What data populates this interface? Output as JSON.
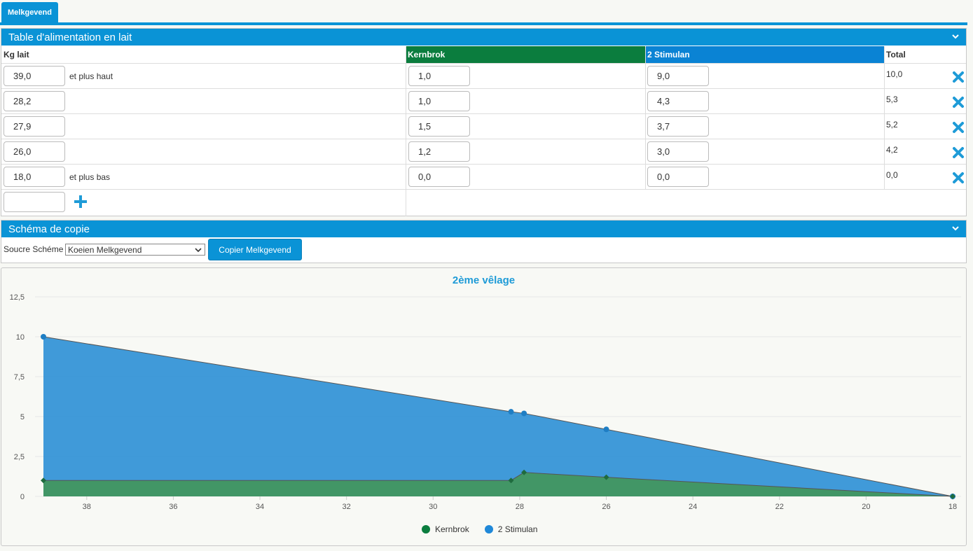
{
  "tabs": [
    {
      "label": "Melkgevend"
    }
  ],
  "feed_table": {
    "title": "Table d'alimentation en lait",
    "headers": {
      "kg": "Kg lait",
      "col1": "Kernbrok",
      "col2": "2 Stimulan",
      "total": "Total"
    },
    "colors": {
      "col1": "#0b7d3e",
      "col2": "#0a83d4"
    },
    "rows": [
      {
        "kg": "39,0",
        "note": "et plus haut",
        "col1": "1,0",
        "col2": "9,0",
        "total": "10,0"
      },
      {
        "kg": "28,2",
        "note": "",
        "col1": "1,0",
        "col2": "4,3",
        "total": "5,3"
      },
      {
        "kg": "27,9",
        "note": "",
        "col1": "1,5",
        "col2": "3,7",
        "total": "5,2"
      },
      {
        "kg": "26,0",
        "note": "",
        "col1": "1,2",
        "col2": "3,0",
        "total": "4,2"
      },
      {
        "kg": "18,0",
        "note": "et plus bas",
        "col1": "0,0",
        "col2": "0,0",
        "total": "0,0"
      }
    ],
    "new_row": {
      "kg": ""
    },
    "icons": {
      "delete": "x-icon",
      "add": "plus-icon",
      "collapse": "chevron-down-icon"
    }
  },
  "copy_schema": {
    "title": "Schéma de copie",
    "source_label": "Soucre Schéme",
    "source_selected": "Koeien Melkgevend",
    "copy_button": "Copier Melkgevend"
  },
  "chart_data": {
    "type": "area",
    "title": "2ème vêlage",
    "xlabel": "",
    "ylabel": "",
    "x_reversed": true,
    "xlim": [
      39,
      18
    ],
    "ylim": [
      0,
      12.5
    ],
    "xticks": [
      38,
      36,
      34,
      32,
      30,
      28,
      26,
      24,
      22,
      20,
      18
    ],
    "yticks": [
      "0",
      "2,5",
      "5",
      "7,5",
      "10",
      "12,5"
    ],
    "ytick_values": [
      0,
      2.5,
      5,
      7.5,
      10,
      12.5
    ],
    "stacked": true,
    "x": [
      39.0,
      28.2,
      27.9,
      26.0,
      18.0
    ],
    "series": [
      {
        "name": "Kernbrok",
        "color": "#2e8b57",
        "values": [
          1.0,
          1.0,
          1.5,
          1.2,
          0.0
        ]
      },
      {
        "name": "2 Stimulan",
        "color": "#2b8fd6",
        "values": [
          9.0,
          4.3,
          3.7,
          3.0,
          0.0
        ]
      }
    ],
    "legend": "bottom-center",
    "grid": true
  }
}
